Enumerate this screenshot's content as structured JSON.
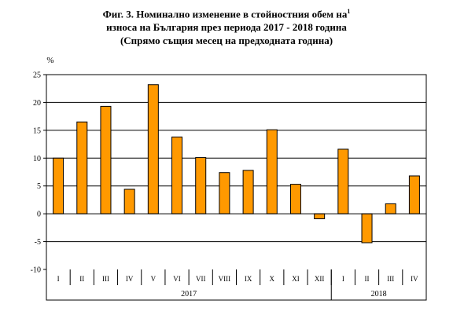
{
  "title": {
    "line1": "Фиг. 3. Номинално изменение в стойностния обем на",
    "line1_sup": "1",
    "line2": "износа на България през периода 2017 - 2018 година",
    "line3": "(Спрямо същия месец на предходната година)"
  },
  "chart_data": {
    "type": "bar",
    "ylabel": "%",
    "ylim": [
      -10,
      25
    ],
    "yticks": [
      -10,
      -5,
      0,
      5,
      10,
      15,
      20,
      25
    ],
    "gridlines": [
      -5,
      5,
      10,
      15,
      20
    ],
    "categories": [
      "I",
      "II",
      "III",
      "IV",
      "V",
      "VI",
      "VII",
      "VIII",
      "IX",
      "X",
      "XI",
      "XII",
      "I",
      "II",
      "III",
      "IV"
    ],
    "groups": [
      {
        "label": "2017",
        "count": 12
      },
      {
        "label": "2018",
        "count": 4
      }
    ],
    "values": [
      10.0,
      16.5,
      19.3,
      4.4,
      23.2,
      13.8,
      10.1,
      7.4,
      7.8,
      15.1,
      5.3,
      -0.9,
      11.6,
      -5.2,
      1.8,
      6.8
    ],
    "bar_color": "#FF9900",
    "bar_edge": "#000000"
  }
}
